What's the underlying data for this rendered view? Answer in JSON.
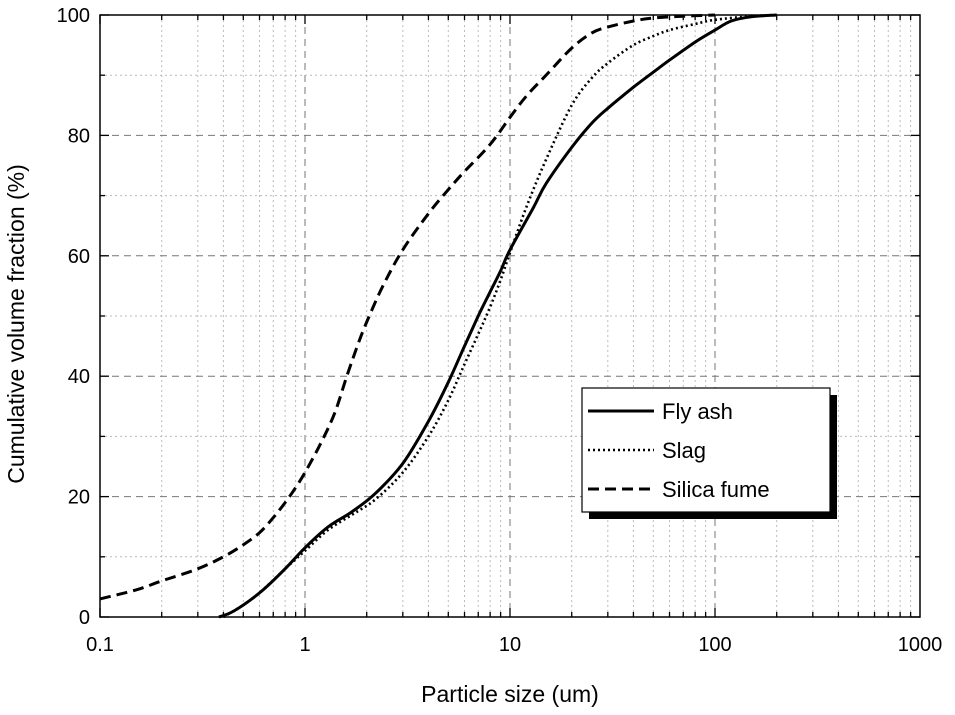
{
  "chart_data": {
    "type": "line",
    "title": "",
    "xlabel": "Particle size (um)",
    "ylabel": "Cumulative volume fraction (%)",
    "x_scale": "log",
    "xlim": [
      0.1,
      1000
    ],
    "ylim": [
      0,
      100
    ],
    "x_ticks": [
      0.1,
      1,
      10,
      100,
      1000
    ],
    "x_tick_labels": [
      "0.1",
      "1",
      "10",
      "100",
      "1000"
    ],
    "y_ticks": [
      0,
      20,
      40,
      60,
      80,
      100
    ],
    "y_tick_labels": [
      "0",
      "20",
      "40",
      "60",
      "80",
      "100"
    ],
    "grid": true,
    "legend_position": "lower-right",
    "series": [
      {
        "name": "Fly ash",
        "style": "solid",
        "x": [
          0.38,
          0.45,
          0.6,
          0.8,
          1.0,
          1.3,
          1.7,
          2.2,
          3.0,
          4.0,
          5.0,
          6.0,
          7.0,
          8.0,
          9.0,
          10,
          13,
          15,
          20,
          25,
          30,
          40,
          50,
          60,
          80,
          100,
          120,
          150,
          200
        ],
        "y": [
          0,
          1,
          4,
          8,
          11.5,
          15,
          17.5,
          20.5,
          25.5,
          32.5,
          39,
          45,
          50,
          54,
          57.5,
          61,
          68,
          72,
          78,
          82,
          84.5,
          88,
          90.5,
          92.5,
          95.5,
          97.5,
          99,
          99.7,
          100
        ]
      },
      {
        "name": "Slag",
        "style": "dotted",
        "x": [
          0.4,
          0.5,
          0.6,
          0.8,
          1.0,
          1.3,
          1.7,
          2.2,
          3.0,
          4.0,
          5.0,
          6.0,
          7.0,
          8.0,
          9.0,
          10,
          12,
          15,
          20,
          25,
          30,
          40,
          50,
          60,
          80,
          100,
          150,
          200
        ],
        "y": [
          0,
          2,
          4,
          8,
          11,
          14.5,
          17,
          19.5,
          24,
          30,
          36,
          42,
          47,
          51.5,
          56,
          60.5,
          68,
          76,
          85,
          89.5,
          92,
          95,
          96.5,
          97.5,
          98.5,
          99.2,
          99.8,
          100
        ]
      },
      {
        "name": "Silica fume",
        "style": "dashed",
        "x": [
          0.1,
          0.15,
          0.2,
          0.3,
          0.4,
          0.5,
          0.6,
          0.7,
          0.8,
          0.9,
          1.0,
          1.2,
          1.4,
          1.6,
          1.8,
          2.0,
          2.4,
          3.0,
          4.0,
          5.0,
          6.0,
          8.0,
          10,
          12,
          15,
          20,
          25,
          30,
          40,
          50,
          70,
          100
        ],
        "y": [
          3,
          4.5,
          6,
          8,
          10,
          12,
          14,
          16.5,
          19,
          21.5,
          24,
          29,
          34,
          40,
          45,
          49,
          55,
          61,
          67,
          71,
          74,
          78.5,
          83,
          86.5,
          90,
          94.5,
          97,
          98,
          99,
          99.5,
          99.8,
          100
        ]
      }
    ]
  }
}
